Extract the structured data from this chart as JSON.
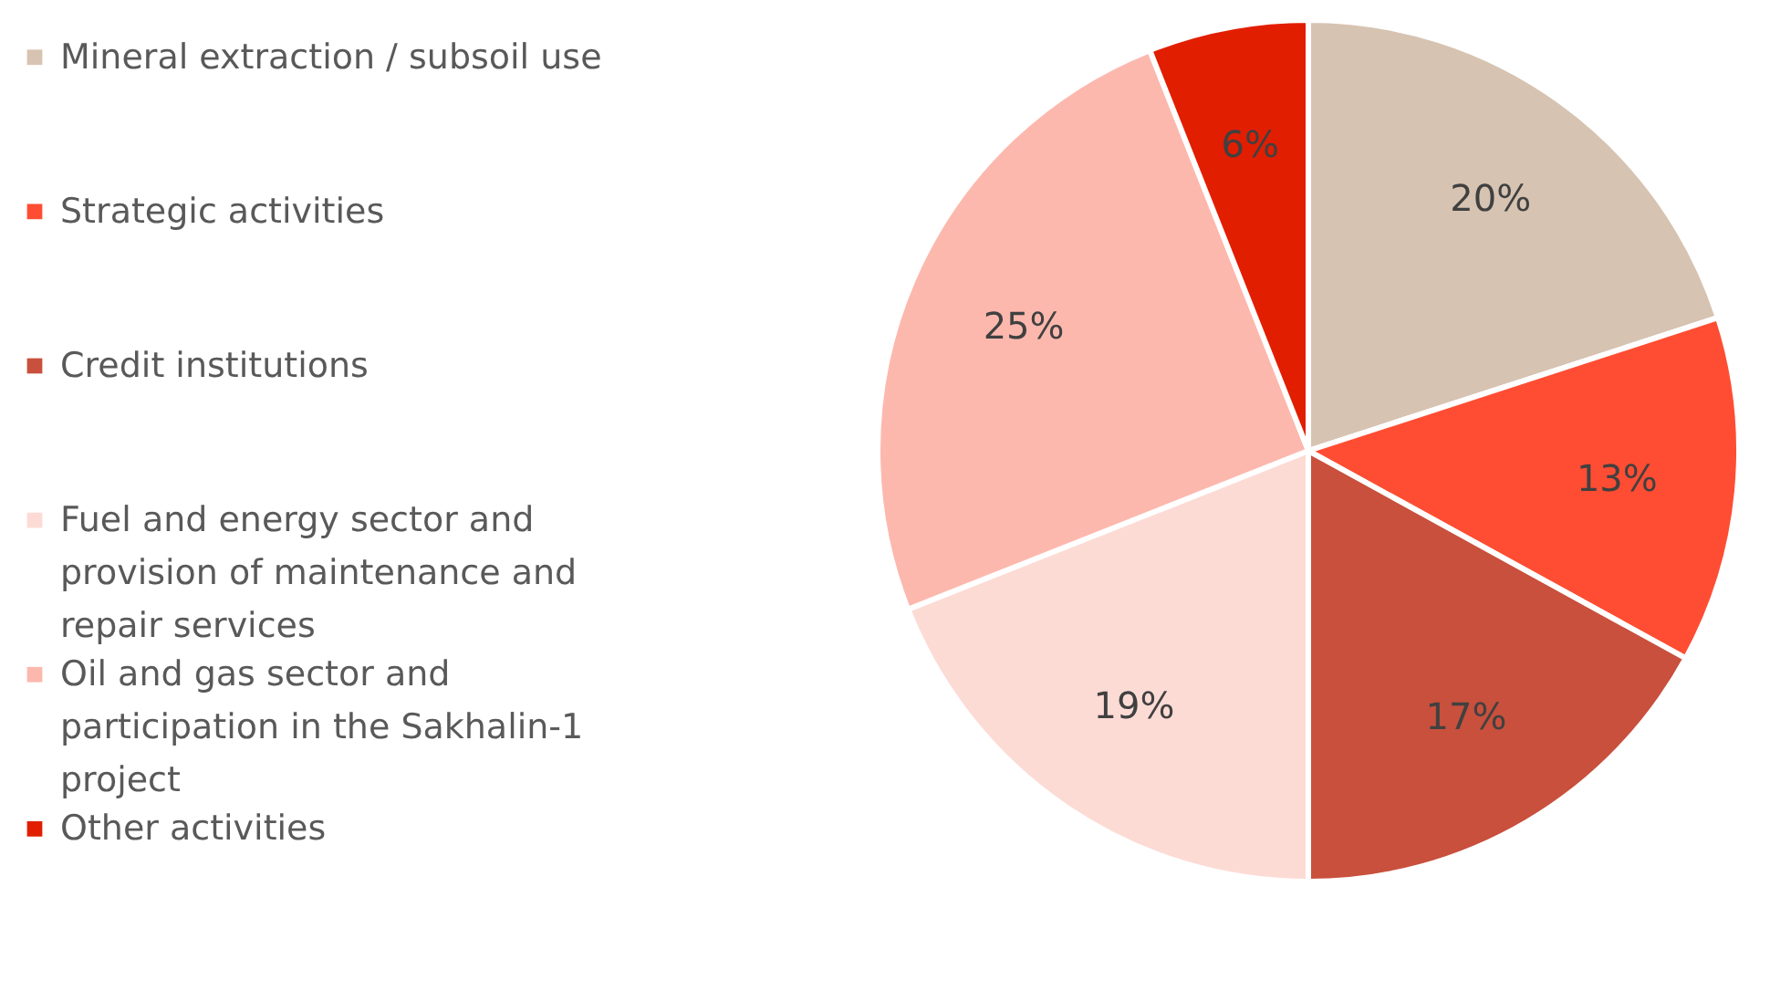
{
  "chart_data": {
    "type": "pie",
    "categories": [
      "Mineral extraction / subsoil use",
      "Strategic activities",
      "Credit institutions",
      "Fuel and energy sector and provision of maintenance and repair services",
      "Oil and gas sector and participation in the Sakhalin-1 project",
      "Other activities"
    ],
    "values": [
      20,
      13,
      17,
      19,
      25,
      6
    ],
    "value_labels": [
      "20%",
      "13%",
      "17%",
      "19%",
      "25%",
      "6%"
    ],
    "colors": [
      "#d7c3b1",
      "#ff4d33",
      "#c8503c",
      "#fddbd5",
      "#fdb8ae",
      "#e21e00"
    ],
    "legend": "left"
  }
}
